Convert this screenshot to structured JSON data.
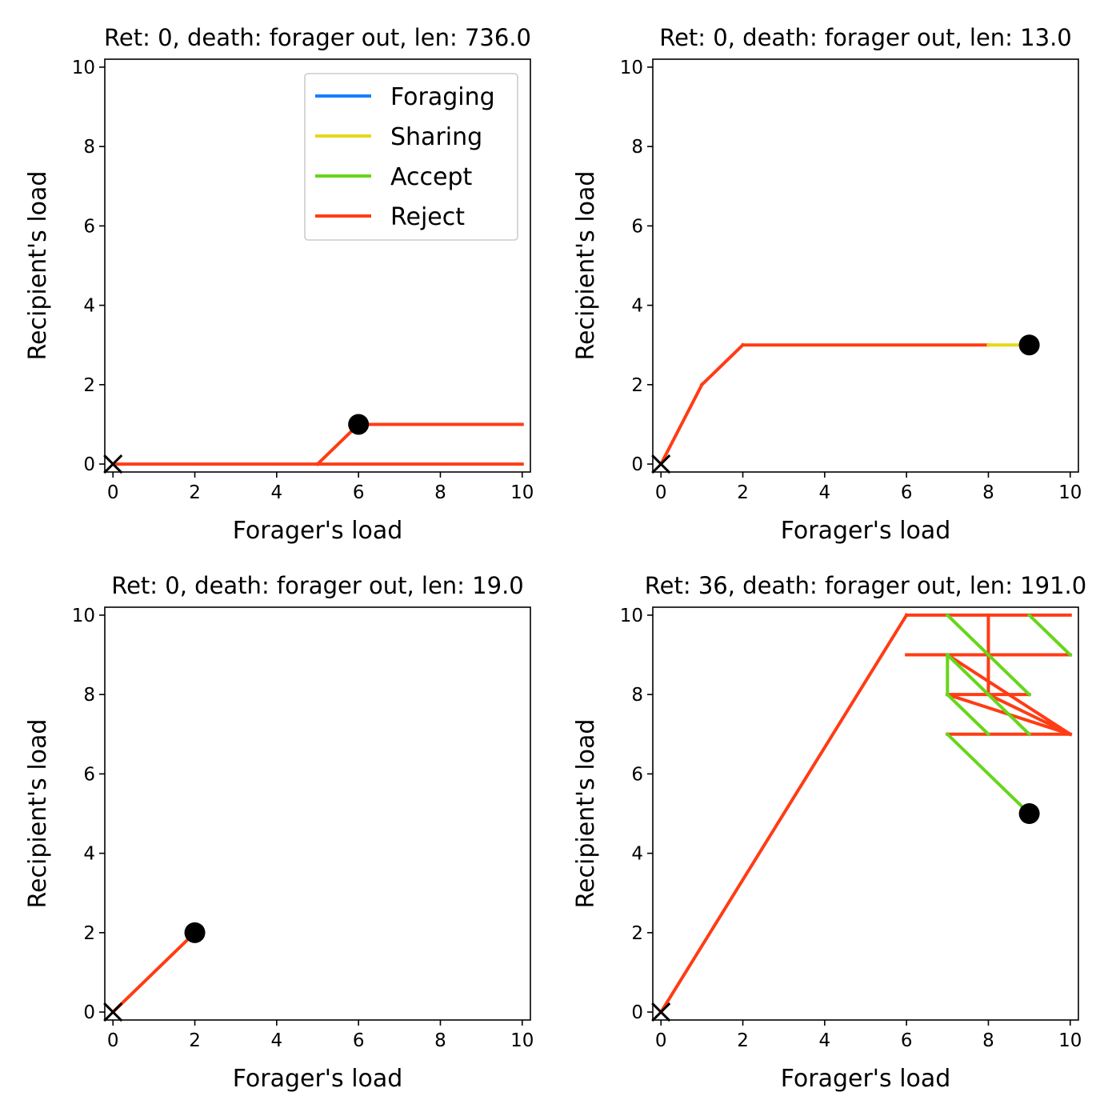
{
  "chart_data": [
    {
      "type": "line",
      "title": "Ret: 0, death: forager out, len: 736.0",
      "xlabel": "Forager's load",
      "ylabel": "Recipient's load",
      "xlim": [
        -0.2,
        10.2
      ],
      "ylim": [
        -0.2,
        10.2
      ],
      "xticks": [
        "0",
        "2",
        "4",
        "6",
        "8",
        "10"
      ],
      "yticks": [
        "0",
        "2",
        "4",
        "6",
        "8",
        "10"
      ],
      "grid": false,
      "legend": {
        "placement": "top-right",
        "entries": [
          {
            "label": "Foraging",
            "color": "#1a7fff"
          },
          {
            "label": "Sharing",
            "color": "#e6d81a"
          },
          {
            "label": "Accept",
            "color": "#66d61a"
          },
          {
            "label": "Reject",
            "color": "#ff3c14"
          }
        ]
      },
      "segments": [
        {
          "series": "Reject",
          "x": [
            0,
            5
          ],
          "y": [
            0,
            0
          ]
        },
        {
          "series": "Reject",
          "x": [
            5,
            6
          ],
          "y": [
            0,
            1
          ]
        },
        {
          "series": "Reject",
          "x": [
            6,
            10
          ],
          "y": [
            1,
            1
          ]
        },
        {
          "series": "Reject",
          "x": [
            5,
            10
          ],
          "y": [
            0,
            0
          ]
        }
      ],
      "start": {
        "x": 0,
        "y": 0,
        "marker": "x"
      },
      "end": {
        "x": 6,
        "y": 1,
        "marker": "circle"
      }
    },
    {
      "type": "line",
      "title": "Ret: 0, death: forager out, len: 13.0",
      "xlabel": "Forager's load",
      "ylabel": "Recipient's load",
      "xlim": [
        -0.2,
        10.2
      ],
      "ylim": [
        -0.2,
        10.2
      ],
      "xticks": [
        "0",
        "2",
        "4",
        "6",
        "8",
        "10"
      ],
      "yticks": [
        "0",
        "2",
        "4",
        "6",
        "8",
        "10"
      ],
      "grid": false,
      "segments": [
        {
          "series": "Reject",
          "x": [
            0,
            1
          ],
          "y": [
            0,
            2
          ]
        },
        {
          "series": "Reject",
          "x": [
            1,
            2
          ],
          "y": [
            2,
            3
          ]
        },
        {
          "series": "Reject",
          "x": [
            2,
            8
          ],
          "y": [
            3,
            3
          ]
        },
        {
          "series": "Sharing",
          "x": [
            8,
            9
          ],
          "y": [
            3,
            3
          ]
        }
      ],
      "start": {
        "x": 0,
        "y": 0,
        "marker": "x"
      },
      "end": {
        "x": 9,
        "y": 3,
        "marker": "circle"
      }
    },
    {
      "type": "line",
      "title": "Ret: 0, death: forager out, len: 19.0",
      "xlabel": "Forager's load",
      "ylabel": "Recipient's load",
      "xlim": [
        -0.2,
        10.2
      ],
      "ylim": [
        -0.2,
        10.2
      ],
      "xticks": [
        "0",
        "2",
        "4",
        "6",
        "8",
        "10"
      ],
      "yticks": [
        "0",
        "2",
        "4",
        "6",
        "8",
        "10"
      ],
      "grid": false,
      "segments": [
        {
          "series": "Reject",
          "x": [
            0,
            2
          ],
          "y": [
            0,
            2
          ]
        }
      ],
      "start": {
        "x": 0,
        "y": 0,
        "marker": "x"
      },
      "end": {
        "x": 2,
        "y": 2,
        "marker": "circle"
      }
    },
    {
      "type": "line",
      "title": "Ret: 36, death: forager out, len: 191.0",
      "xlabel": "Forager's load",
      "ylabel": "Recipient's load",
      "xlim": [
        -0.2,
        10.2
      ],
      "ylim": [
        -0.2,
        10.2
      ],
      "xticks": [
        "0",
        "2",
        "4",
        "6",
        "8",
        "10"
      ],
      "yticks": [
        "0",
        "2",
        "4",
        "6",
        "8",
        "10"
      ],
      "grid": false,
      "segments": [
        {
          "series": "Reject",
          "x": [
            0,
            6
          ],
          "y": [
            0,
            10
          ]
        },
        {
          "series": "Reject",
          "x": [
            6,
            10
          ],
          "y": [
            10,
            10
          ]
        },
        {
          "series": "Reject",
          "x": [
            6,
            10
          ],
          "y": [
            9,
            9
          ]
        },
        {
          "series": "Reject",
          "x": [
            8,
            8
          ],
          "y": [
            8,
            10
          ]
        },
        {
          "series": "Reject",
          "x": [
            7,
            8
          ],
          "y": [
            8,
            8
          ]
        },
        {
          "series": "Reject",
          "x": [
            8,
            9
          ],
          "y": [
            8,
            8
          ]
        },
        {
          "series": "Reject",
          "x": [
            7,
            10
          ],
          "y": [
            7,
            7
          ]
        },
        {
          "series": "Reject",
          "x": [
            7,
            10
          ],
          "y": [
            9,
            7
          ]
        },
        {
          "series": "Reject",
          "x": [
            7,
            10
          ],
          "y": [
            8,
            7
          ]
        },
        {
          "series": "Reject",
          "x": [
            8,
            10
          ],
          "y": [
            8,
            7
          ]
        },
        {
          "series": "Accept",
          "x": [
            7,
            8
          ],
          "y": [
            10,
            9
          ]
        },
        {
          "series": "Accept",
          "x": [
            9,
            10
          ],
          "y": [
            10,
            9
          ]
        },
        {
          "series": "Accept",
          "x": [
            7,
            7
          ],
          "y": [
            8,
            9
          ]
        },
        {
          "series": "Accept",
          "x": [
            7,
            9
          ],
          "y": [
            9,
            7
          ]
        },
        {
          "series": "Accept",
          "x": [
            8,
            9
          ],
          "y": [
            9,
            8
          ]
        },
        {
          "series": "Accept",
          "x": [
            7,
            8
          ],
          "y": [
            8,
            7
          ]
        },
        {
          "series": "Accept",
          "x": [
            7,
            9
          ],
          "y": [
            7,
            5
          ]
        }
      ],
      "start": {
        "x": 0,
        "y": 0,
        "marker": "x"
      },
      "end": {
        "x": 9,
        "y": 5,
        "marker": "circle"
      }
    }
  ]
}
